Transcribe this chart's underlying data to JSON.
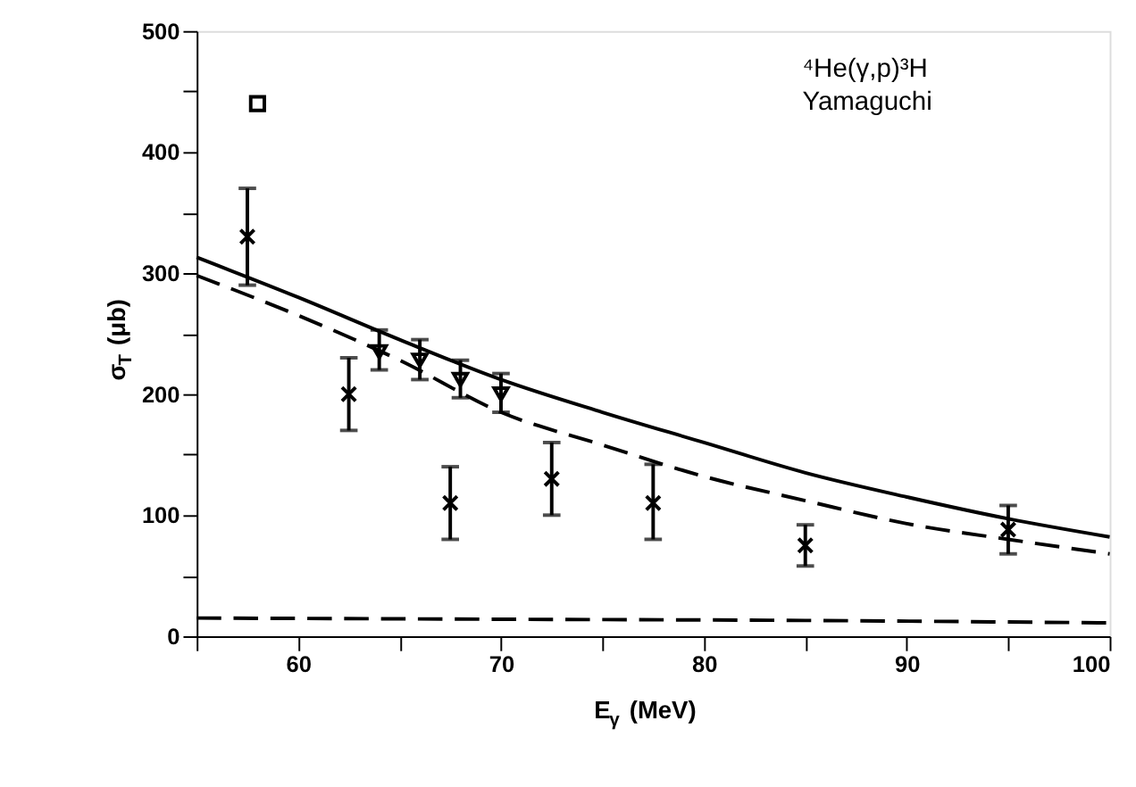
{
  "chart_data": {
    "type": "scatter",
    "xlabel": "E$_{γ}$ (MeV)",
    "ylabel": "σ$_{T}$ (μb)",
    "annotations": [
      "⁴He(γ,p)³H",
      "Yamaguchi"
    ],
    "xlim": [
      55,
      100
    ],
    "ylim": [
      0,
      500
    ],
    "xticks": [
      {
        "value": 55,
        "label": null
      },
      60,
      {
        "value": 65,
        "label": null
      },
      70,
      {
        "value": 75,
        "label": null
      },
      80,
      {
        "value": 85,
        "label": null
      },
      90,
      {
        "value": 95,
        "label": null
      },
      100
    ],
    "yticks": [
      0,
      {
        "value": 50,
        "label": null
      },
      100,
      {
        "value": 150,
        "label": null
      },
      200,
      {
        "value": 250,
        "label": null
      },
      300,
      {
        "value": 350,
        "label": null
      },
      400,
      {
        "value": 450,
        "label": null
      },
      500
    ],
    "grid": false,
    "series": [
      {
        "type": "line",
        "line_style": "solid",
        "color": "#000000",
        "x": [
          55,
          60,
          65,
          70,
          75,
          80,
          85,
          90,
          95,
          100
        ],
        "values": [
          313,
          280,
          245,
          212,
          185,
          160,
          135,
          115,
          97,
          82
        ]
      },
      {
        "type": "line",
        "line_style": "dashed",
        "color": "#000000",
        "x": [
          55,
          60,
          65,
          70,
          75,
          80,
          85,
          90,
          95,
          100
        ],
        "values": [
          298,
          265,
          228,
          185,
          158,
          132,
          112,
          93,
          80,
          68
        ]
      },
      {
        "type": "line",
        "line_style": "dashed",
        "color": "#000000",
        "x": [
          55,
          70,
          85,
          100
        ],
        "values": [
          15,
          14,
          13,
          11
        ]
      },
      {
        "type": "scatter",
        "marker": "cross",
        "color": "#000000",
        "x": [
          57.5,
          62.5,
          67.5,
          72.5,
          77.5,
          85,
          95
        ],
        "values": [
          330,
          200,
          110,
          130,
          110,
          75,
          88
        ],
        "errors": [
          [
            290,
            370
          ],
          [
            170,
            230
          ],
          [
            80,
            140
          ],
          [
            100,
            160
          ],
          [
            80,
            142
          ],
          [
            58,
            92
          ],
          [
            68,
            108
          ]
        ]
      },
      {
        "type": "scatter",
        "marker": "triangle",
        "color": "#000000",
        "x": [
          64,
          66,
          68,
          70
        ],
        "values": [
          235,
          228,
          212,
          200
        ],
        "errors": [
          [
            220,
            253
          ],
          [
            212,
            245
          ],
          [
            197,
            228
          ],
          [
            185,
            217
          ]
        ]
      },
      {
        "type": "scatter",
        "marker": "square",
        "color": "#000000",
        "x": [
          58
        ],
        "values": [
          440
        ]
      }
    ]
  }
}
